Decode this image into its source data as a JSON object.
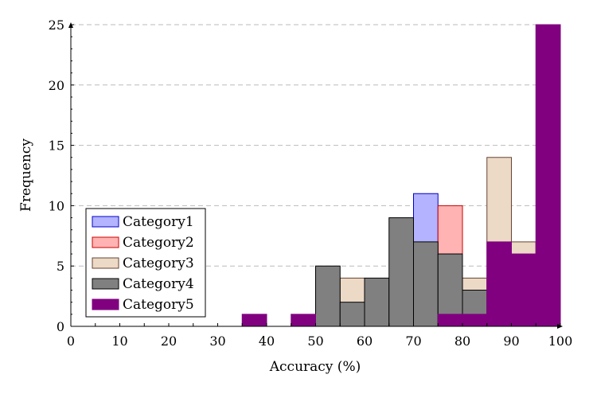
{
  "chart_data": {
    "type": "bar",
    "subtype": "overlaid-histogram",
    "xlabel": "Accuracy (%)",
    "ylabel": "Frequency",
    "xlim": [
      0,
      100
    ],
    "ylim": [
      0,
      25
    ],
    "bin_width": 5,
    "x_ticks": [
      "0",
      "10",
      "20",
      "30",
      "40",
      "50",
      "60",
      "70",
      "80",
      "90",
      "100"
    ],
    "y_ticks": [
      "0",
      "5",
      "10",
      "15",
      "20",
      "25"
    ],
    "grid": "horizontal dashed",
    "legend_position": "bottom-left",
    "series": [
      {
        "name": "Category1",
        "fill": "#b3b3ff",
        "stroke": "#0000cc",
        "bins": [
          {
            "x0": 70,
            "x1": 75,
            "value": 11
          }
        ]
      },
      {
        "name": "Category2",
        "fill": "#ffb3b3",
        "stroke": "#cc0000",
        "bins": [
          {
            "x0": 75,
            "x1": 80,
            "value": 10
          }
        ]
      },
      {
        "name": "Category3",
        "fill": "#ecd9c6",
        "stroke": "#664433",
        "bins": [
          {
            "x0": 55,
            "x1": 60,
            "value": 4
          },
          {
            "x0": 80,
            "x1": 85,
            "value": 4
          },
          {
            "x0": 85,
            "x1": 90,
            "value": 14
          },
          {
            "x0": 90,
            "x1": 95,
            "value": 7
          }
        ]
      },
      {
        "name": "Category4",
        "fill": "#808080",
        "stroke": "#000000",
        "bins": [
          {
            "x0": 50,
            "x1": 55,
            "value": 5
          },
          {
            "x0": 55,
            "x1": 60,
            "value": 2
          },
          {
            "x0": 60,
            "x1": 65,
            "value": 4
          },
          {
            "x0": 65,
            "x1": 70,
            "value": 9
          },
          {
            "x0": 70,
            "x1": 75,
            "value": 7
          },
          {
            "x0": 75,
            "x1": 80,
            "value": 6
          },
          {
            "x0": 80,
            "x1": 85,
            "value": 3
          }
        ]
      },
      {
        "name": "Category5",
        "fill": "#800080",
        "stroke": "#800080",
        "bins": [
          {
            "x0": 35,
            "x1": 40,
            "value": 1
          },
          {
            "x0": 45,
            "x1": 50,
            "value": 1
          },
          {
            "x0": 75,
            "x1": 80,
            "value": 1
          },
          {
            "x0": 80,
            "x1": 85,
            "value": 1
          },
          {
            "x0": 85,
            "x1": 90,
            "value": 7
          },
          {
            "x0": 90,
            "x1": 95,
            "value": 6
          },
          {
            "x0": 95,
            "x1": 100,
            "value": 25
          }
        ]
      }
    ]
  }
}
